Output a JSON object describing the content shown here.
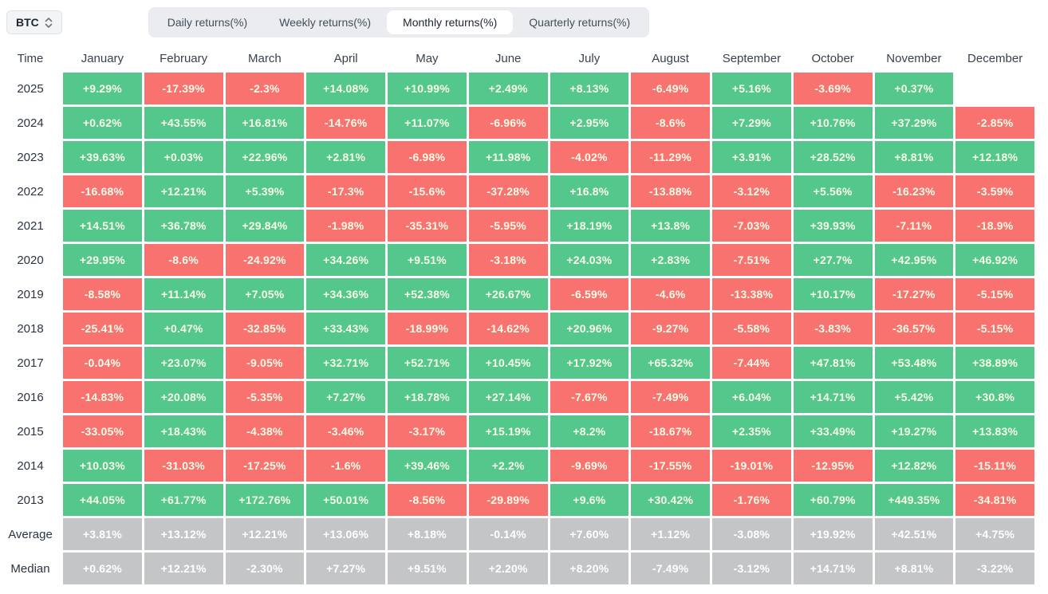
{
  "colors": {
    "positive": "#53C78C",
    "negative": "#F87370",
    "summary": "#C4C5C7",
    "cell_text": "#FAFCE8"
  },
  "selector": {
    "value": "BTC"
  },
  "tabs": [
    {
      "label": "Daily returns(%)",
      "active": false
    },
    {
      "label": "Weekly returns(%)",
      "active": false
    },
    {
      "label": "Monthly returns(%)",
      "active": true
    },
    {
      "label": "Quarterly returns(%)",
      "active": false
    }
  ],
  "chart_data": {
    "type": "heatmap",
    "title": "Monthly returns(%)",
    "time_label": "Time",
    "legend": "green = positive return, red = negative return, gray = summary rows",
    "columns": [
      "January",
      "February",
      "March",
      "April",
      "May",
      "June",
      "July",
      "August",
      "September",
      "October",
      "November",
      "December"
    ],
    "rows": [
      {
        "label": "2025",
        "kind": "year",
        "values": [
          "+9.29%",
          "-17.39%",
          "-2.3%",
          "+14.08%",
          "+10.99%",
          "+2.49%",
          "+8.13%",
          "-6.49%",
          "+5.16%",
          "-3.69%",
          "+0.37%",
          ""
        ]
      },
      {
        "label": "2024",
        "kind": "year",
        "values": [
          "+0.62%",
          "+43.55%",
          "+16.81%",
          "-14.76%",
          "+11.07%",
          "-6.96%",
          "+2.95%",
          "-8.6%",
          "+7.29%",
          "+10.76%",
          "+37.29%",
          "-2.85%"
        ]
      },
      {
        "label": "2023",
        "kind": "year",
        "values": [
          "+39.63%",
          "+0.03%",
          "+22.96%",
          "+2.81%",
          "-6.98%",
          "+11.98%",
          "-4.02%",
          "-11.29%",
          "+3.91%",
          "+28.52%",
          "+8.81%",
          "+12.18%"
        ]
      },
      {
        "label": "2022",
        "kind": "year",
        "values": [
          "-16.68%",
          "+12.21%",
          "+5.39%",
          "-17.3%",
          "-15.6%",
          "-37.28%",
          "+16.8%",
          "-13.88%",
          "-3.12%",
          "+5.56%",
          "-16.23%",
          "-3.59%"
        ]
      },
      {
        "label": "2021",
        "kind": "year",
        "values": [
          "+14.51%",
          "+36.78%",
          "+29.84%",
          "-1.98%",
          "-35.31%",
          "-5.95%",
          "+18.19%",
          "+13.8%",
          "-7.03%",
          "+39.93%",
          "-7.11%",
          "-18.9%"
        ]
      },
      {
        "label": "2020",
        "kind": "year",
        "values": [
          "+29.95%",
          "-8.6%",
          "-24.92%",
          "+34.26%",
          "+9.51%",
          "-3.18%",
          "+24.03%",
          "+2.83%",
          "-7.51%",
          "+27.7%",
          "+42.95%",
          "+46.92%"
        ]
      },
      {
        "label": "2019",
        "kind": "year",
        "values": [
          "-8.58%",
          "+11.14%",
          "+7.05%",
          "+34.36%",
          "+52.38%",
          "+26.67%",
          "-6.59%",
          "-4.6%",
          "-13.38%",
          "+10.17%",
          "-17.27%",
          "-5.15%"
        ]
      },
      {
        "label": "2018",
        "kind": "year",
        "values": [
          "-25.41%",
          "+0.47%",
          "-32.85%",
          "+33.43%",
          "-18.99%",
          "-14.62%",
          "+20.96%",
          "-9.27%",
          "-5.58%",
          "-3.83%",
          "-36.57%",
          "-5.15%"
        ]
      },
      {
        "label": "2017",
        "kind": "year",
        "values": [
          "-0.04%",
          "+23.07%",
          "-9.05%",
          "+32.71%",
          "+52.71%",
          "+10.45%",
          "+17.92%",
          "+65.32%",
          "-7.44%",
          "+47.81%",
          "+53.48%",
          "+38.89%"
        ]
      },
      {
        "label": "2016",
        "kind": "year",
        "values": [
          "-14.83%",
          "+20.08%",
          "-5.35%",
          "+7.27%",
          "+18.78%",
          "+27.14%",
          "-7.67%",
          "-7.49%",
          "+6.04%",
          "+14.71%",
          "+5.42%",
          "+30.8%"
        ]
      },
      {
        "label": "2015",
        "kind": "year",
        "values": [
          "-33.05%",
          "+18.43%",
          "-4.38%",
          "-3.46%",
          "-3.17%",
          "+15.19%",
          "+8.2%",
          "-18.67%",
          "+2.35%",
          "+33.49%",
          "+19.27%",
          "+13.83%"
        ]
      },
      {
        "label": "2014",
        "kind": "year",
        "values": [
          "+10.03%",
          "-31.03%",
          "-17.25%",
          "-1.6%",
          "+39.46%",
          "+2.2%",
          "-9.69%",
          "-17.55%",
          "-19.01%",
          "-12.95%",
          "+12.82%",
          "-15.11%"
        ]
      },
      {
        "label": "2013",
        "kind": "year",
        "values": [
          "+44.05%",
          "+61.77%",
          "+172.76%",
          "+50.01%",
          "-8.56%",
          "-29.89%",
          "+9.6%",
          "+30.42%",
          "-1.76%",
          "+60.79%",
          "+449.35%",
          "-34.81%"
        ]
      },
      {
        "label": "Average",
        "kind": "summary",
        "values": [
          "+3.81%",
          "+13.12%",
          "+12.21%",
          "+13.06%",
          "+8.18%",
          "-0.14%",
          "+7.60%",
          "+1.12%",
          "-3.08%",
          "+19.92%",
          "+42.51%",
          "+4.75%"
        ]
      },
      {
        "label": "Median",
        "kind": "summary",
        "values": [
          "+0.62%",
          "+12.21%",
          "-2.30%",
          "+7.27%",
          "+9.51%",
          "+2.20%",
          "+8.20%",
          "-7.49%",
          "-3.12%",
          "+14.71%",
          "+8.81%",
          "-3.22%"
        ]
      }
    ]
  }
}
